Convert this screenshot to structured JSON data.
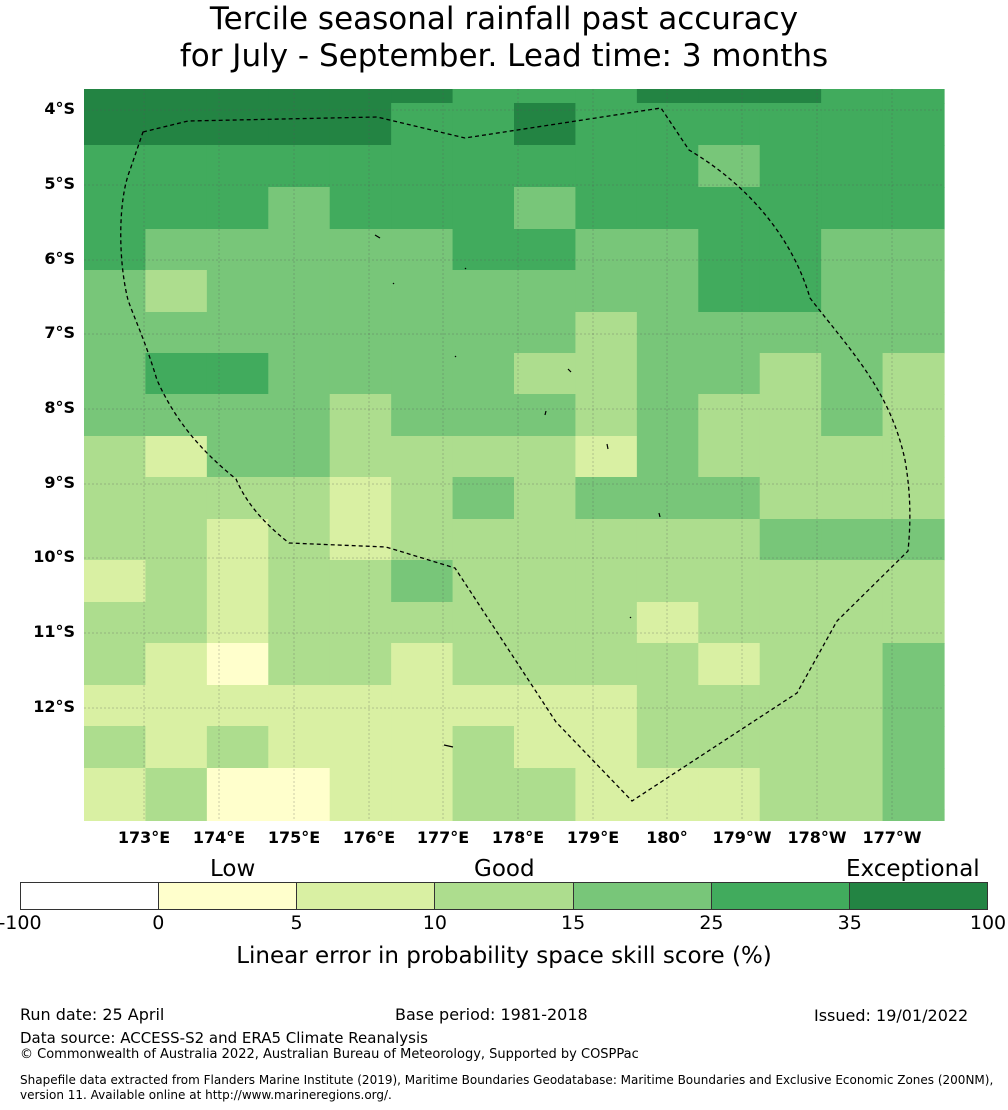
{
  "title": {
    "line1": "Tercile seasonal rainfall past accuracy",
    "line2": "for July - September. Lead time: 3 months"
  },
  "map": {
    "lat_labels": [
      "4°S",
      "5°S",
      "6°S",
      "7°S",
      "8°S",
      "9°S",
      "10°S",
      "11°S",
      "12°S"
    ],
    "lon_labels": [
      "173°E",
      "174°E",
      "175°E",
      "176°E",
      "177°E",
      "178°E",
      "179°E",
      "180°",
      "179°W",
      "178°W",
      "177°W"
    ],
    "grid_cols": 14,
    "grid_rows": 18,
    "skill_grid": [
      "FFFFFFEEEFFFEE",
      "FFFFFEEFEEEEEE",
      "EEEEEEEEEEDEEE",
      "EEEDEEEDEEEEEE",
      "EDDDDDEEDDEEDD",
      "DCDDDDDDDDEEDD",
      "DDDDDDDDCDDDDD",
      "DEEDDDDCCDDCDC",
      "DDDDCDDDCDCCDC",
      "CBDDCCCCBDCCCC",
      "CCCCBCDCDDDCCC",
      "CCBCBCCCCCCDDD",
      "BCBCCDCCCCCCCC",
      "CCBCCCCCCBCCCC",
      "CBACCBCCCCBCCD",
      "BBBBBBBBBCCCCD",
      "CBCBBBCBBCCCCD",
      "BCAABBCCBBBCCD"
    ],
    "color_key": {
      "A": "#ffffcc",
      "B": "#d9f0a3",
      "C": "#addd8e",
      "D": "#78c679",
      "E": "#41ab5d",
      "F": "#238443"
    }
  },
  "colorbar": {
    "colors": [
      "#ffffff",
      "#ffffcc",
      "#d9f0a3",
      "#addd8e",
      "#78c679",
      "#41ab5d",
      "#238443"
    ],
    "ticks": [
      "-100",
      "0",
      "5",
      "10",
      "15",
      "25",
      "35",
      "100"
    ],
    "categories": [
      "Low",
      "Good",
      "Exceptional"
    ],
    "label": "Linear error in probability space skill score (%)"
  },
  "footer": {
    "run_date": "Run date: 25 April",
    "base_period": "Base period: 1981-2018",
    "issued": "Issued: 19/01/2022",
    "data_source": "Data source: ACCESS-S2 and ERA5 Climate Reanalysis",
    "copyright": "© Commonwealth of Australia 2022, Australian Bureau of Meteorology, Supported by COSPPac",
    "shapefile": "Shapefile data extracted from Flanders Marine Institute (2019), Maritime Boundaries Geodatabase: Maritime Boundaries and Exclusive Economic Zones (200NM), version 11. Available online at http://www.marineregions.org/."
  }
}
